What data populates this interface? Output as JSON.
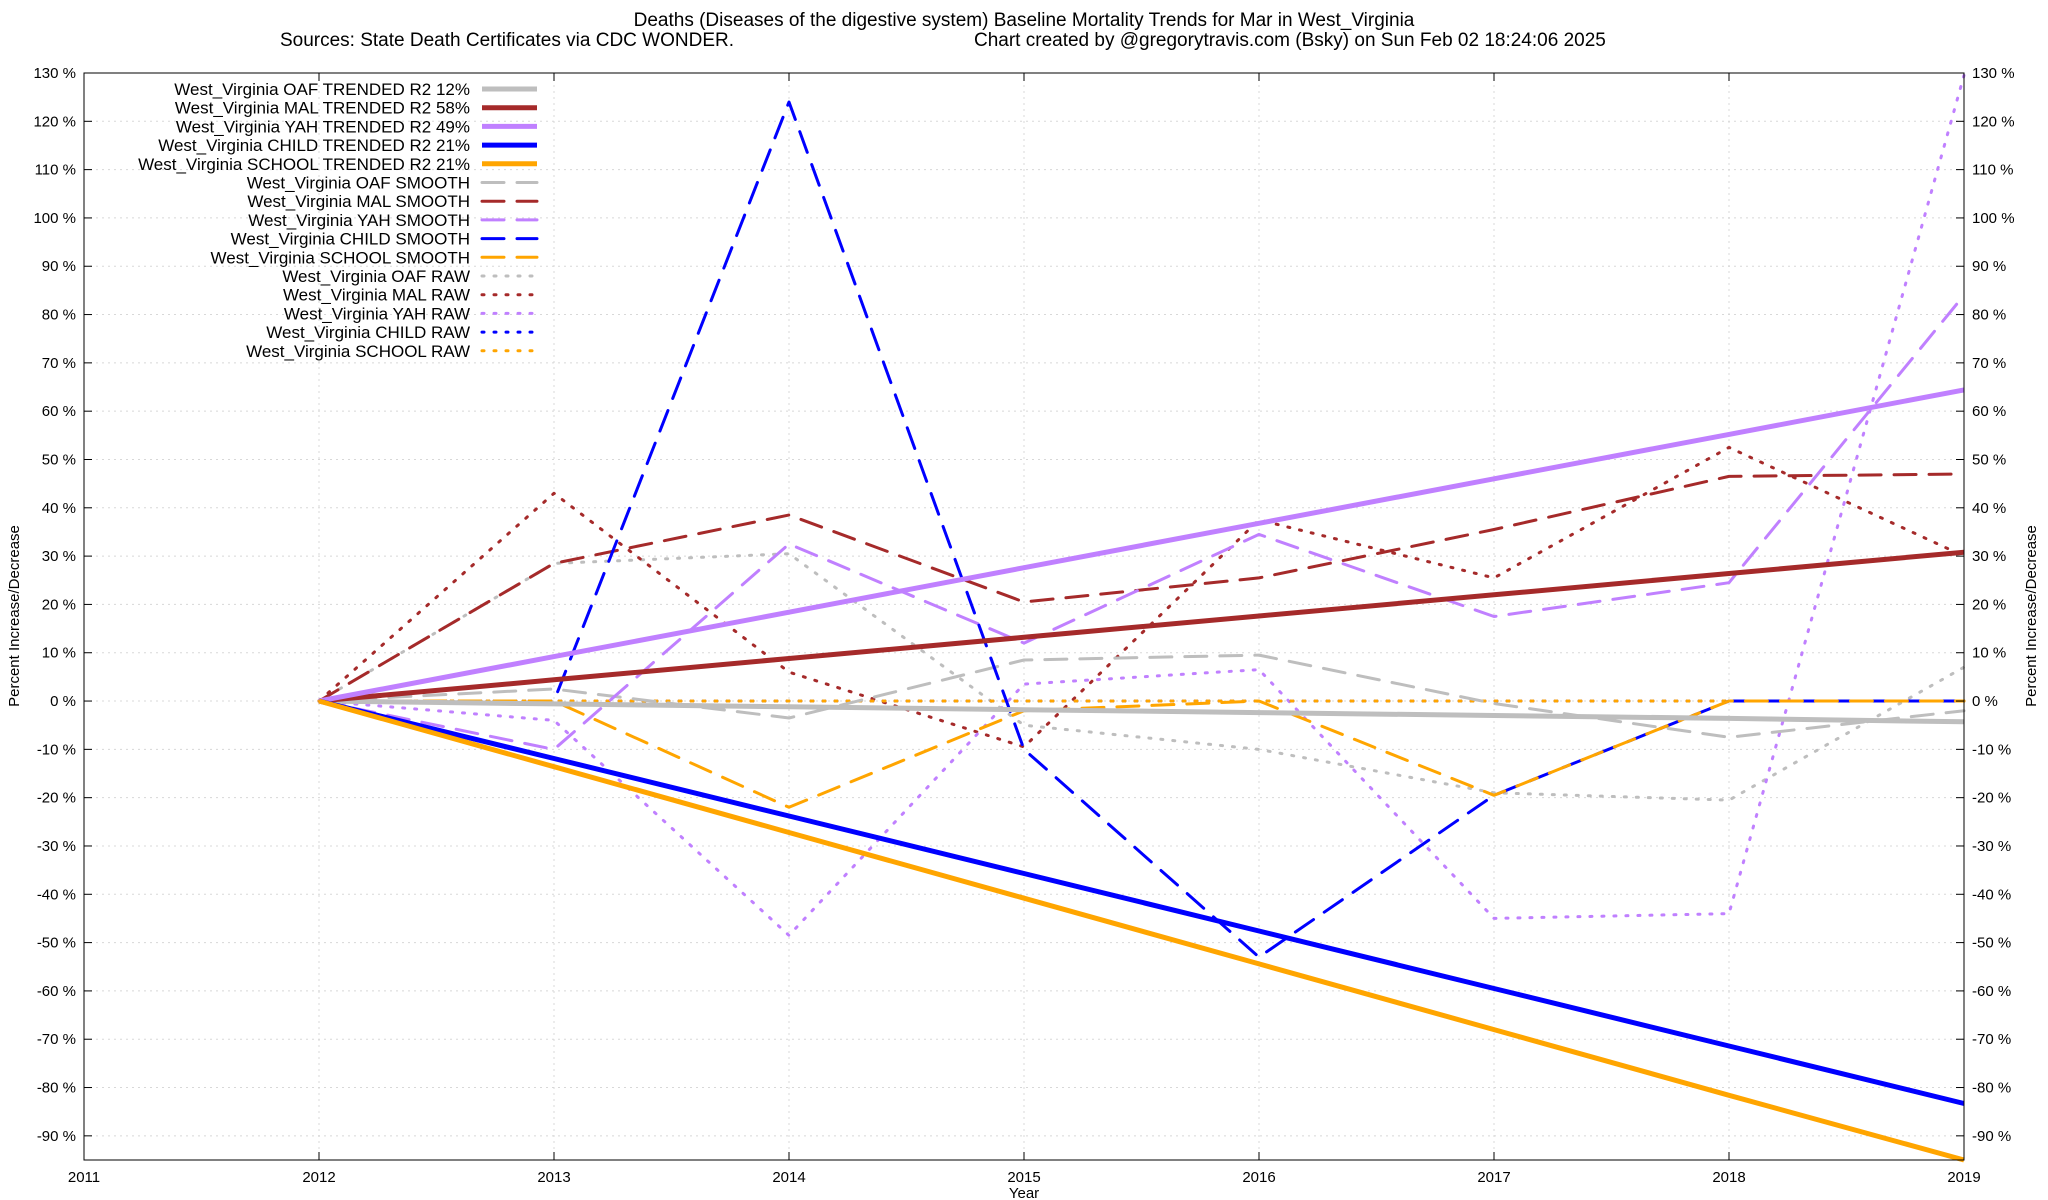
{
  "chart_data": {
    "type": "line",
    "title": "Deaths (Diseases of the digestive system)  Baseline Mortality Trends for Mar in West_Virginia",
    "subtitle_left": "Sources: State Death Certificates via CDC WONDER.",
    "subtitle_right": "Chart created by @gregorytravis.com (Bsky) on Sun Feb 02 18:24:06 2025",
    "xlabel": "Year",
    "ylabel_left": "Percent Increase/Decrease",
    "ylabel_right": "Percent Increase/Decrease",
    "xlim": [
      2011,
      2019
    ],
    "ylim": [
      -95,
      130
    ],
    "x_ticks": [
      "2011",
      "2012",
      "2013",
      "2014",
      "2015",
      "2016",
      "2017",
      "2018",
      "2019"
    ],
    "y_ticks": [
      "130 %",
      "120 %",
      "110 %",
      "100 %",
      "90 %",
      "80 %",
      "70 %",
      "60 %",
      "50 %",
      "40 %",
      "30 %",
      "20 %",
      "10 %",
      "0 %",
      "-10 %",
      "-20 %",
      "-30 %",
      "-40 %",
      "-50 %",
      "-60 %",
      "-70 %",
      "-80 %",
      "-90 %"
    ],
    "grid": true,
    "legend_position": "top-left",
    "x": [
      2012,
      2013,
      2014,
      2015,
      2016,
      2017,
      2018,
      2019
    ],
    "series": [
      {
        "name": "West_Virginia OAF TRENDED R2  12%",
        "style": "solid",
        "color": "#bebebe",
        "values": [
          0,
          -0.6,
          -1.2,
          -1.8,
          -2.4,
          -3.0,
          -3.6,
          -4.3
        ]
      },
      {
        "name": "West_Virginia MAL TRENDED R2  58%",
        "style": "solid",
        "color": "#a52a2a",
        "values": [
          0,
          4.4,
          8.8,
          13.2,
          17.6,
          22.0,
          26.4,
          30.8
        ]
      },
      {
        "name": "West_Virginia YAH TRENDED R2  49%",
        "style": "solid",
        "color": "#c080ff",
        "values": [
          0,
          9.2,
          18.4,
          27.6,
          36.8,
          46.0,
          55.2,
          64.4
        ]
      },
      {
        "name": "West_Virginia CHILD TRENDED R2  21%",
        "style": "solid",
        "color": "#0000ff",
        "values": [
          0,
          -11.9,
          -23.8,
          -35.7,
          -47.6,
          -59.5,
          -71.4,
          -83.3
        ]
      },
      {
        "name": "West_Virginia SCHOOL TRENDED R2  21%",
        "style": "solid",
        "color": "#ffa500",
        "values": [
          0,
          -13.6,
          -27.2,
          -40.8,
          -54.4,
          -68.0,
          -81.6,
          -95.0
        ]
      },
      {
        "name": "West_Virginia OAF SMOOTH",
        "style": "dashed",
        "color": "#bebebe",
        "values": [
          0,
          2.5,
          -3.5,
          8.5,
          9.5,
          -0.5,
          -7.5,
          -2.0
        ]
      },
      {
        "name": "West_Virginia MAL SMOOTH",
        "style": "dashed",
        "color": "#a52a2a",
        "values": [
          0,
          28.5,
          38.5,
          20.5,
          25.5,
          35.5,
          46.5,
          47.0
        ]
      },
      {
        "name": "West_Virginia YAH SMOOTH",
        "style": "dashed",
        "color": "#c080ff",
        "values": [
          0,
          -10.0,
          32.5,
          12.0,
          34.5,
          17.5,
          24.5,
          84.0
        ]
      },
      {
        "name": "West_Virginia CHILD SMOOTH",
        "style": "dashed",
        "color": "#0000ff",
        "values": [
          0,
          0,
          124.0,
          -10.0,
          -53.0,
          -19.5,
          0,
          0
        ]
      },
      {
        "name": "West_Virginia SCHOOL SMOOTH",
        "style": "dashed",
        "color": "#ffa500",
        "values": [
          0,
          0,
          -22.0,
          -2.0,
          0,
          -19.5,
          0,
          0
        ]
      },
      {
        "name": "West_Virginia OAF RAW",
        "style": "dotted",
        "color": "#bebebe",
        "values": [
          0,
          28.5,
          30.5,
          -5.0,
          -10.0,
          -19.0,
          -20.5,
          7.0
        ]
      },
      {
        "name": "West_Virginia MAL RAW",
        "style": "dotted",
        "color": "#a52a2a",
        "values": [
          0,
          43.0,
          6.0,
          -9.5,
          37.5,
          25.5,
          52.5,
          30.0
        ]
      },
      {
        "name": "West_Virginia YAH RAW",
        "style": "dotted",
        "color": "#c080ff",
        "values": [
          0,
          -4.0,
          -48.5,
          3.5,
          6.5,
          -45.0,
          -44.0,
          129.5
        ]
      },
      {
        "name": "West_Virginia CHILD RAW",
        "style": "dotted",
        "color": "#0000ff",
        "values": [
          0,
          0,
          0,
          0,
          0,
          0,
          0,
          0
        ]
      },
      {
        "name": "West_Virginia SCHOOL RAW",
        "style": "dotted",
        "color": "#ffa500",
        "values": [
          0,
          0,
          0,
          0,
          0,
          0,
          0,
          0
        ]
      }
    ]
  }
}
